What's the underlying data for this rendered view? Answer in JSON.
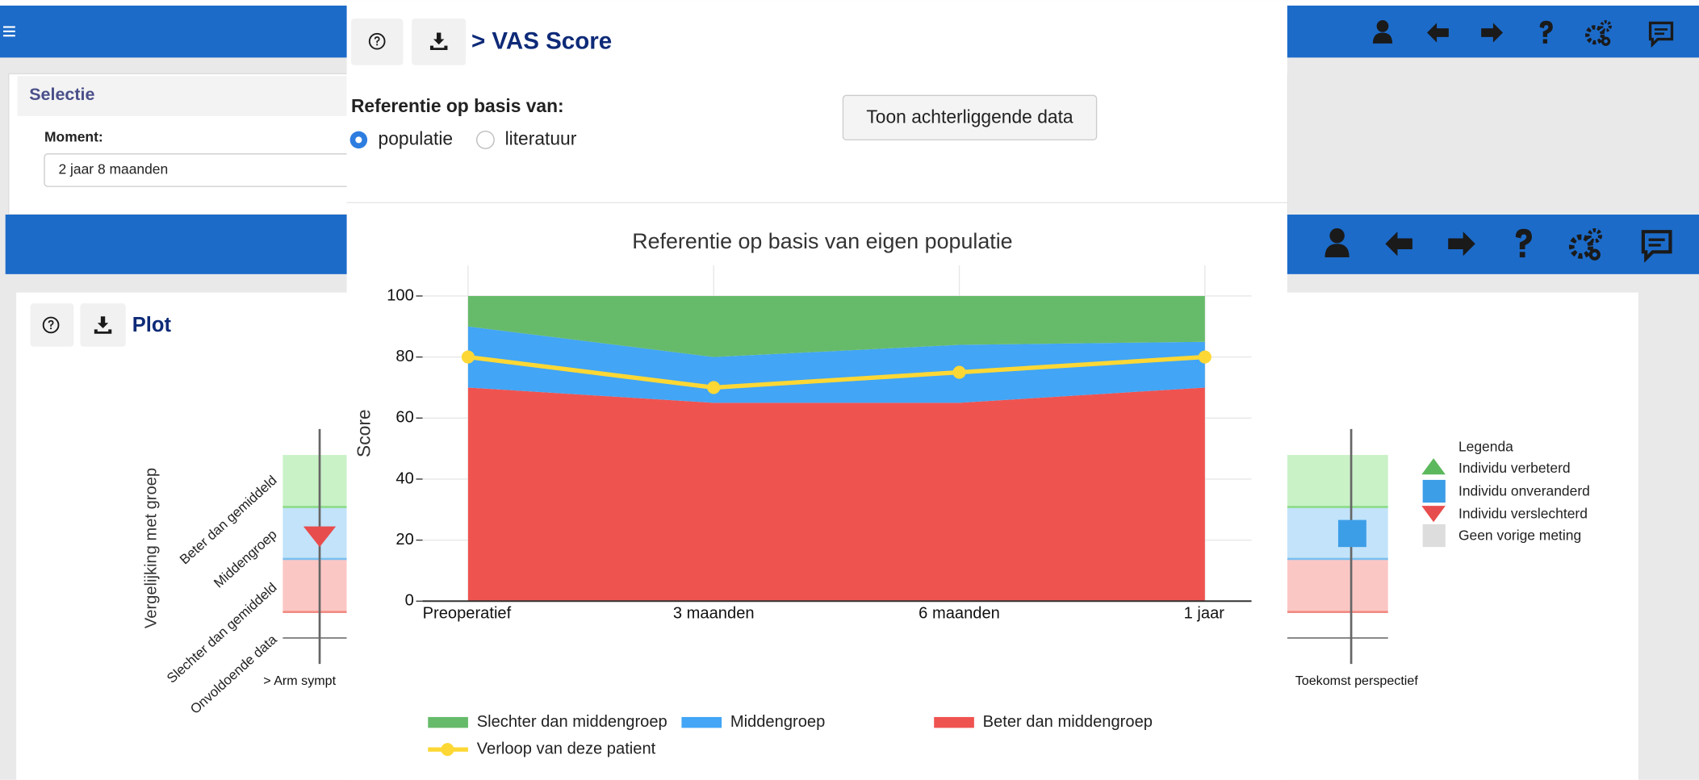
{
  "selection": {
    "title": "Selectie",
    "moment_label": "Moment:",
    "moment_value": "2 jaar 8 maanden"
  },
  "plot_panel": {
    "title": "Plot",
    "y_axis_label": "Vergelijking met groep",
    "y_categories": [
      "Beter dan gemiddeld",
      "Middengroep",
      "Slechter dan gemiddeld",
      "Onvoldoende data"
    ],
    "x_labels": [
      "> Arm sympt",
      "Toekomst perspectief"
    ],
    "legend": {
      "title": "Legenda",
      "items": [
        "Individu verbeterd",
        "Individu onveranderd",
        "Individu verslechterd",
        "Geen vorige meting"
      ]
    }
  },
  "modal": {
    "title": "> VAS Score",
    "reference_label": "Referentie op basis van:",
    "options": [
      "populatie",
      "literatuur"
    ],
    "button": "Toon achterliggende data"
  },
  "chart_data": {
    "type": "area",
    "stacked": true,
    "title": "Referentie op basis van eigen populatie",
    "y_label": "Score",
    "categories": [
      "Preoperatief",
      "3 maanden",
      "6 maanden",
      "1 jaar"
    ],
    "series": [
      {
        "name": "Slechter dan middengroep",
        "color": "#66bb6a",
        "values": [
          10,
          20,
          16,
          15
        ]
      },
      {
        "name": "Middengroep",
        "color": "#42a5f5",
        "values": [
          20,
          15,
          19,
          15
        ]
      },
      {
        "name": "Beter dan middengroep",
        "color": "#ef5350",
        "values": [
          70,
          65,
          65,
          70
        ]
      },
      {
        "name": "Verloop van deze patient",
        "color": "#fdd835",
        "type": "line",
        "values": [
          80,
          70,
          75,
          80
        ]
      }
    ],
    "ylim": [
      0,
      110
    ],
    "yticks": [
      0,
      20,
      40,
      60,
      80,
      100
    ],
    "grid": true
  }
}
